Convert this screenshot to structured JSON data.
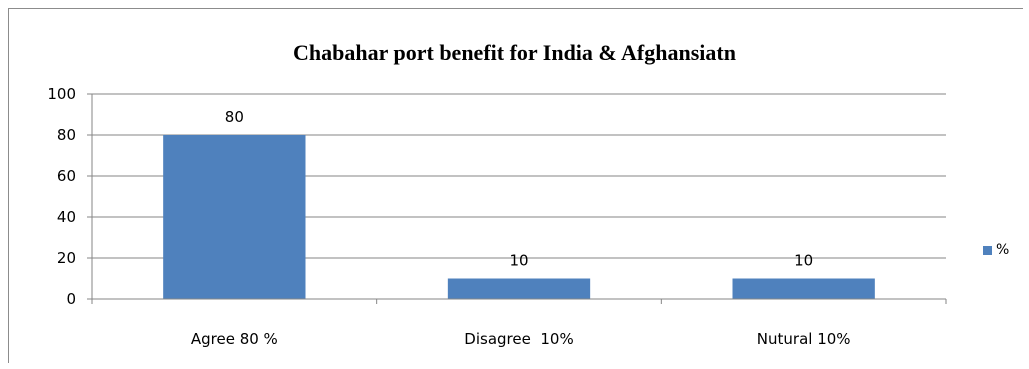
{
  "chart_data": {
    "type": "bar",
    "title": "Chabahar port benefit for India & Afghansiatn",
    "categories": [
      "Agree 80 %",
      "Disagree  10%",
      "Nutural 10%"
    ],
    "series": [
      {
        "name": "%",
        "values": [
          80,
          10,
          10
        ]
      }
    ],
    "data_labels": [
      "80",
      "10",
      "10"
    ],
    "ylim": [
      0,
      100
    ],
    "yticks": [
      0,
      20,
      40,
      60,
      80,
      100
    ],
    "xlabel": "",
    "ylabel": "",
    "grid": true,
    "legend_position": "right",
    "colors": {
      "bar": "#4f81bd",
      "grid": "#868686",
      "axis": "#868686"
    }
  }
}
